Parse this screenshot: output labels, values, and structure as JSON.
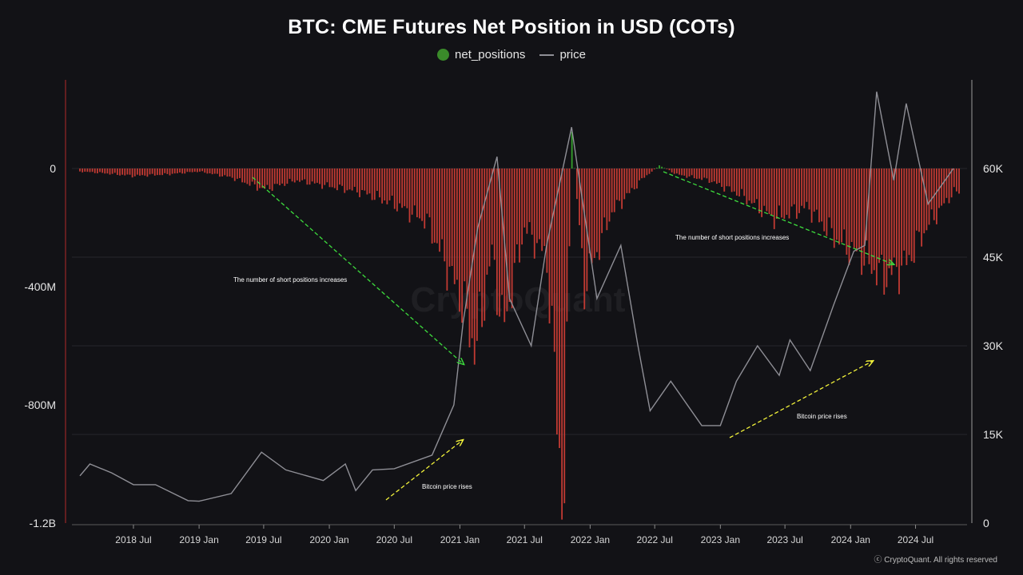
{
  "chart_data": {
    "type": "bar+line",
    "title": "BTC: CME Futures Net Position in USD (COTs)",
    "legend": [
      {
        "name": "net_positions",
        "color": "#3a8a2a",
        "marker": "dot"
      },
      {
        "name": "price",
        "color": "#8f8f96",
        "marker": "line"
      }
    ],
    "colors": {
      "negative": "#c23a33",
      "positive": "#34a02c",
      "price": "#8f8f96",
      "annotation_arrow_green": "#3ddc3d",
      "annotation_arrow_yellow": "#f2f23a",
      "left_axis": "#b22a2a"
    },
    "y_left": {
      "min": -1200000000,
      "max": 300000000,
      "ticks": [
        {
          "v": 0,
          "label": "0"
        },
        {
          "v": -400000000,
          "label": "-400M"
        },
        {
          "v": -800000000,
          "label": "-800M"
        },
        {
          "v": -1200000000,
          "label": "-1.2B"
        }
      ]
    },
    "y_right": {
      "min": 0,
      "max": 75000,
      "ticks": [
        {
          "v": 60000,
          "label": "60K"
        },
        {
          "v": 45000,
          "label": "45K"
        },
        {
          "v": 30000,
          "label": "30K"
        },
        {
          "v": 15000,
          "label": "15K"
        },
        {
          "v": 0,
          "label": "0"
        }
      ]
    },
    "x_range": [
      "2018-02-01",
      "2024-10-31"
    ],
    "x_ticks": [
      {
        "date": "2018-07-01",
        "label": "2018 Jul"
      },
      {
        "date": "2019-01-01",
        "label": "2019 Jan"
      },
      {
        "date": "2019-07-01",
        "label": "2019 Jul"
      },
      {
        "date": "2020-01-01",
        "label": "2020 Jan"
      },
      {
        "date": "2020-07-01",
        "label": "2020 Jul"
      },
      {
        "date": "2021-01-01",
        "label": "2021 Jan"
      },
      {
        "date": "2021-07-01",
        "label": "2021 Jul"
      },
      {
        "date": "2022-01-01",
        "label": "2022 Jan"
      },
      {
        "date": "2022-07-01",
        "label": "2022 Jul"
      },
      {
        "date": "2023-01-01",
        "label": "2023 Jan"
      },
      {
        "date": "2023-07-01",
        "label": "2023 Jul"
      },
      {
        "date": "2024-01-01",
        "label": "2024 Jan"
      },
      {
        "date": "2024-07-01",
        "label": "2024 Jul"
      }
    ],
    "net_positions": [
      {
        "date": "2018-02-01",
        "v": -10000000
      },
      {
        "date": "2018-04-01",
        "v": -15000000
      },
      {
        "date": "2018-07-01",
        "v": -25000000
      },
      {
        "date": "2018-10-01",
        "v": -20000000
      },
      {
        "date": "2019-01-01",
        "v": -10000000
      },
      {
        "date": "2019-04-01",
        "v": -30000000
      },
      {
        "date": "2019-07-01",
        "v": -70000000
      },
      {
        "date": "2019-10-01",
        "v": -40000000
      },
      {
        "date": "2020-01-01",
        "v": -60000000
      },
      {
        "date": "2020-04-01",
        "v": -80000000
      },
      {
        "date": "2020-07-01",
        "v": -120000000
      },
      {
        "date": "2020-10-01",
        "v": -180000000
      },
      {
        "date": "2021-01-01",
        "v": -430000000
      },
      {
        "date": "2021-02-15",
        "v": -620000000
      },
      {
        "date": "2021-04-01",
        "v": -280000000
      },
      {
        "date": "2021-05-01",
        "v": -550000000
      },
      {
        "date": "2021-07-01",
        "v": -200000000
      },
      {
        "date": "2021-09-01",
        "v": -300000000
      },
      {
        "date": "2021-10-20",
        "v": -1180000000
      },
      {
        "date": "2021-11-10",
        "v": 120000000
      },
      {
        "date": "2021-12-15",
        "v": -400000000
      },
      {
        "date": "2022-03-01",
        "v": -150000000
      },
      {
        "date": "2022-06-01",
        "v": -30000000
      },
      {
        "date": "2022-07-15",
        "v": 10000000
      },
      {
        "date": "2022-09-01",
        "v": -20000000
      },
      {
        "date": "2022-12-01",
        "v": -40000000
      },
      {
        "date": "2023-03-01",
        "v": -90000000
      },
      {
        "date": "2023-06-01",
        "v": -170000000
      },
      {
        "date": "2023-09-01",
        "v": -130000000
      },
      {
        "date": "2023-12-01",
        "v": -250000000
      },
      {
        "date": "2024-02-01",
        "v": -300000000
      },
      {
        "date": "2024-04-01",
        "v": -370000000
      },
      {
        "date": "2024-06-01",
        "v": -330000000
      },
      {
        "date": "2024-08-01",
        "v": -200000000
      },
      {
        "date": "2024-10-15",
        "v": -80000000
      }
    ],
    "price": [
      {
        "date": "2018-02-01",
        "v": 8000
      },
      {
        "date": "2018-03-01",
        "v": 10000
      },
      {
        "date": "2018-05-01",
        "v": 8500
      },
      {
        "date": "2018-07-01",
        "v": 6500
      },
      {
        "date": "2018-09-01",
        "v": 6500
      },
      {
        "date": "2018-12-01",
        "v": 3800
      },
      {
        "date": "2019-01-01",
        "v": 3700
      },
      {
        "date": "2019-04-01",
        "v": 5000
      },
      {
        "date": "2019-06-25",
        "v": 12000
      },
      {
        "date": "2019-09-01",
        "v": 9000
      },
      {
        "date": "2019-12-15",
        "v": 7200
      },
      {
        "date": "2020-02-15",
        "v": 10000
      },
      {
        "date": "2020-03-15",
        "v": 5500
      },
      {
        "date": "2020-05-01",
        "v": 9000
      },
      {
        "date": "2020-07-01",
        "v": 9200
      },
      {
        "date": "2020-10-15",
        "v": 11500
      },
      {
        "date": "2020-12-15",
        "v": 20000
      },
      {
        "date": "2021-01-10",
        "v": 34000
      },
      {
        "date": "2021-02-20",
        "v": 50000
      },
      {
        "date": "2021-04-15",
        "v": 62000
      },
      {
        "date": "2021-05-20",
        "v": 38000
      },
      {
        "date": "2021-07-20",
        "v": 30000
      },
      {
        "date": "2021-09-01",
        "v": 47000
      },
      {
        "date": "2021-11-10",
        "v": 67000
      },
      {
        "date": "2022-01-20",
        "v": 38000
      },
      {
        "date": "2022-03-28",
        "v": 47000
      },
      {
        "date": "2022-05-15",
        "v": 30000
      },
      {
        "date": "2022-06-18",
        "v": 19000
      },
      {
        "date": "2022-08-15",
        "v": 24000
      },
      {
        "date": "2022-11-10",
        "v": 16500
      },
      {
        "date": "2023-01-01",
        "v": 16500
      },
      {
        "date": "2023-02-15",
        "v": 24000
      },
      {
        "date": "2023-04-15",
        "v": 30000
      },
      {
        "date": "2023-06-15",
        "v": 25000
      },
      {
        "date": "2023-07-15",
        "v": 31000
      },
      {
        "date": "2023-09-10",
        "v": 25800
      },
      {
        "date": "2023-11-15",
        "v": 37000
      },
      {
        "date": "2024-01-10",
        "v": 46000
      },
      {
        "date": "2024-02-10",
        "v": 47000
      },
      {
        "date": "2024-03-14",
        "v": 73000
      },
      {
        "date": "2024-05-01",
        "v": 58000
      },
      {
        "date": "2024-06-05",
        "v": 71000
      },
      {
        "date": "2024-08-05",
        "v": 54000
      },
      {
        "date": "2024-09-10",
        "v": 57000
      },
      {
        "date": "2024-10-15",
        "v": 60000
      }
    ],
    "annotations": {
      "short_left": "The number of short positions increases",
      "short_right": "The number of short positions increases",
      "price_left": "Bitcoin price rises",
      "price_right": "Bitcoin price rises"
    },
    "watermark": "CryptoQuant",
    "copyright": "ⓒ CryptoQuant. All rights reserved"
  }
}
